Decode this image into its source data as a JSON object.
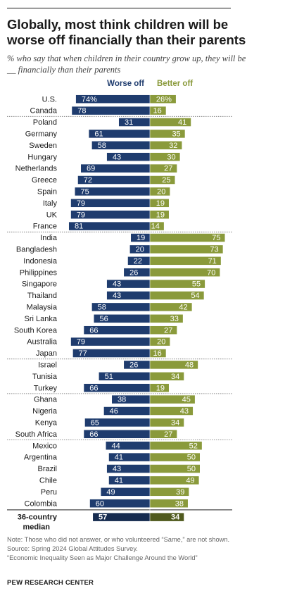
{
  "title": "Globally, most think children will be worse off financially than their parents",
  "subtitle": "% who say that when children in their country grow up, they will be __ financially than their parents",
  "note": "Note: Those who did not answer, or who volunteered “Same,” are not shown.",
  "source": "Source: Spring 2024 Global Attitudes Survey.",
  "report": "“Economic Inequality Seen as Major Challenge Around the World”",
  "brand": "PEW RESEARCH CENTER",
  "colors": {
    "worse": "#1f3c6e",
    "better": "#8a9a3b",
    "worse_text": "#ffffff",
    "better_text": "#ffffff"
  },
  "chart_data": {
    "type": "bar",
    "orientation": "diverging-horizontal",
    "legend_position": "top",
    "grid": false,
    "xlim": [
      0,
      100
    ],
    "series": [
      {
        "name": "Worse off",
        "key": "worse"
      },
      {
        "name": "Better off",
        "key": "better"
      }
    ],
    "groups": [
      {
        "rows": [
          {
            "label": "U.S.",
            "worse": 74,
            "better": 26,
            "pct": true
          },
          {
            "label": "Canada",
            "worse": 78,
            "better": 16
          }
        ]
      },
      {
        "rows": [
          {
            "label": "Poland",
            "worse": 31,
            "better": 41
          },
          {
            "label": "Germany",
            "worse": 61,
            "better": 35
          },
          {
            "label": "Sweden",
            "worse": 58,
            "better": 32
          },
          {
            "label": "Hungary",
            "worse": 43,
            "better": 30
          },
          {
            "label": "Netherlands",
            "worse": 69,
            "better": 27
          },
          {
            "label": "Greece",
            "worse": 72,
            "better": 25
          },
          {
            "label": "Spain",
            "worse": 75,
            "better": 20
          },
          {
            "label": "Italy",
            "worse": 79,
            "better": 19
          },
          {
            "label": "UK",
            "worse": 79,
            "better": 19
          },
          {
            "label": "France",
            "worse": 81,
            "better": 14
          }
        ]
      },
      {
        "rows": [
          {
            "label": "India",
            "worse": 19,
            "better": 75
          },
          {
            "label": "Bangladesh",
            "worse": 20,
            "better": 73
          },
          {
            "label": "Indonesia",
            "worse": 22,
            "better": 71
          },
          {
            "label": "Philippines",
            "worse": 26,
            "better": 70
          },
          {
            "label": "Singapore",
            "worse": 43,
            "better": 55
          },
          {
            "label": "Thailand",
            "worse": 43,
            "better": 54
          },
          {
            "label": "Malaysia",
            "worse": 58,
            "better": 42
          },
          {
            "label": "Sri Lanka",
            "worse": 56,
            "better": 33
          },
          {
            "label": "South Korea",
            "worse": 66,
            "better": 27
          },
          {
            "label": "Australia",
            "worse": 79,
            "better": 20
          },
          {
            "label": "Japan",
            "worse": 77,
            "better": 16
          }
        ]
      },
      {
        "rows": [
          {
            "label": "Israel",
            "worse": 26,
            "better": 48
          },
          {
            "label": "Tunisia",
            "worse": 51,
            "better": 34
          },
          {
            "label": "Turkey",
            "worse": 66,
            "better": 19
          }
        ]
      },
      {
        "rows": [
          {
            "label": "Ghana",
            "worse": 38,
            "better": 45
          },
          {
            "label": "Nigeria",
            "worse": 46,
            "better": 43
          },
          {
            "label": "Kenya",
            "worse": 65,
            "better": 34
          },
          {
            "label": "South Africa",
            "worse": 66,
            "better": 27
          }
        ]
      },
      {
        "rows": [
          {
            "label": "Mexico",
            "worse": 44,
            "better": 52
          },
          {
            "label": "Argentina",
            "worse": 41,
            "better": 50
          },
          {
            "label": "Brazil",
            "worse": 43,
            "better": 50
          },
          {
            "label": "Chile",
            "worse": 41,
            "better": 49
          },
          {
            "label": "Peru",
            "worse": 49,
            "better": 39
          },
          {
            "label": "Colombia",
            "worse": 60,
            "better": 38
          }
        ]
      }
    ],
    "median": {
      "label_lines": [
        "36-country",
        "median"
      ],
      "worse": 57,
      "better": 34
    }
  }
}
